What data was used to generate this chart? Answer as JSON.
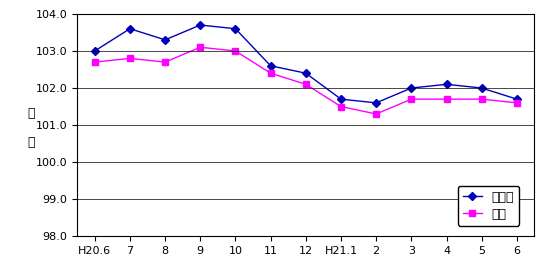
{
  "x_labels": [
    "H20.6",
    "7",
    "8",
    "9",
    "10",
    "11",
    "12",
    "H21.1",
    "2",
    "3",
    "4",
    "5",
    "6"
  ],
  "mie_values": [
    103.0,
    103.6,
    103.3,
    103.7,
    103.6,
    102.6,
    102.4,
    101.7,
    101.6,
    102.0,
    102.1,
    102.0,
    101.7
  ],
  "tsu_values": [
    102.7,
    102.8,
    102.7,
    103.1,
    103.0,
    102.4,
    102.1,
    101.5,
    101.3,
    101.7,
    101.7,
    101.7,
    101.6
  ],
  "mie_color": "#0000BB",
  "tsu_color": "#FF00FF",
  "mie_label": "三重県",
  "tsu_label": "津市",
  "ylabel_line1": "指",
  "ylabel_line2": "数",
  "ylim_min": 98.0,
  "ylim_max": 104.0,
  "yticks": [
    98.0,
    99.0,
    100.0,
    101.0,
    102.0,
    103.0,
    104.0
  ],
  "background_color": "#ffffff",
  "plot_bg_color": "#ffffff",
  "tick_fontsize": 8,
  "legend_fontsize": 9
}
